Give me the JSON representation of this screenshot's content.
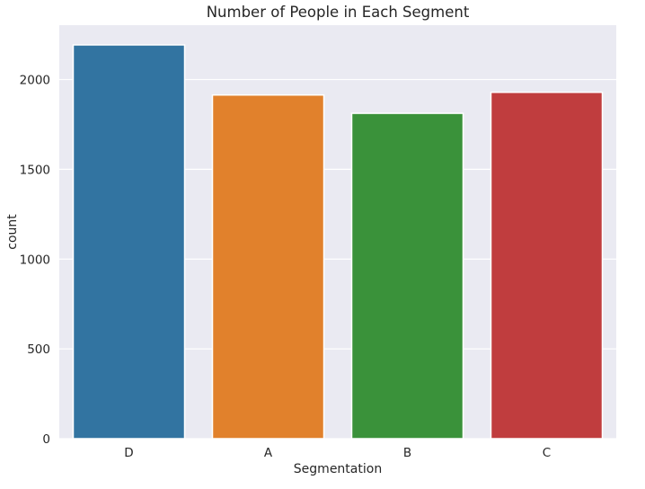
{
  "chart_data": {
    "type": "bar",
    "title": "Number of People in Each Segment",
    "xlabel": "Segmentation",
    "ylabel": "count",
    "categories": [
      "D",
      "A",
      "B",
      "C"
    ],
    "values": [
      2193,
      1914,
      1812,
      1929
    ],
    "colors": [
      "#3274a1",
      "#e1812c",
      "#3a923a",
      "#c03d3e"
    ],
    "yticks": [
      0,
      500,
      1000,
      1500,
      2000
    ],
    "ylim": [
      0,
      2303
    ],
    "grid": true,
    "background": "#eaeaf2",
    "legend": "none"
  }
}
